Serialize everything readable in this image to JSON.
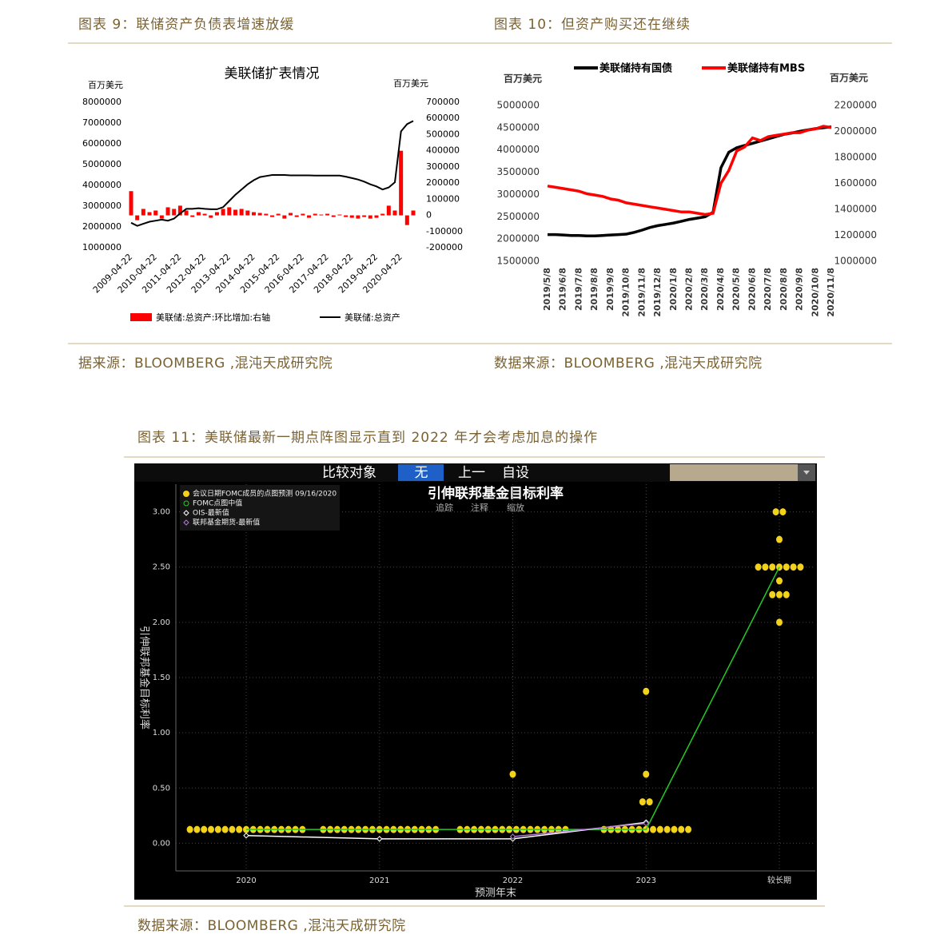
{
  "captions": [
    "图表 9：联储资产负债表增速放缓",
    "图表 10：但资产购买还在继续",
    "图表 11：美联储最新一期点阵图显示直到 2022 年才会考虑加息的操作"
  ],
  "sources": [
    "据来源：BLOOMBERG ,混沌天成研究院",
    "数据来源：BLOOMBERG ,混沌天成研究院",
    "数据来源：BLOOMBERG ,混沌天成研究院"
  ],
  "chart_data": [
    {
      "type": "combo",
      "title": "美联储扩表情况",
      "y_label": "百万美元",
      "y2_label": "百万美元",
      "categories": [
        "2009-04-22",
        null,
        null,
        null,
        "2010-04-22",
        null,
        null,
        null,
        "2011-04-22",
        null,
        null,
        null,
        "2012-04-22",
        null,
        null,
        null,
        "2013-04-22",
        null,
        null,
        null,
        "2014-04-22",
        null,
        null,
        null,
        "2015-04-22",
        null,
        null,
        null,
        "2016-04-22",
        null,
        null,
        null,
        "2017-04-22",
        null,
        null,
        null,
        "2018-04-22",
        null,
        null,
        null,
        "2019-04-22",
        null,
        null,
        null,
        "2020-04-22",
        null,
        null
      ],
      "ylim": [
        1000000,
        8000000
      ],
      "yticks": [
        1000000,
        2000000,
        3000000,
        4000000,
        5000000,
        6000000,
        7000000,
        8000000
      ],
      "y2lim": [
        -200000,
        700000
      ],
      "y2ticks": [
        -200000,
        -100000,
        0,
        100000,
        200000,
        300000,
        400000,
        500000,
        600000,
        700000
      ],
      "series": [
        {
          "name": "美联储:总资产:环比增加:右轴",
          "type": "bar",
          "axis": "y2",
          "color": "#ff0000",
          "values": [
            150000,
            -30000,
            40000,
            20000,
            30000,
            -20000,
            50000,
            40000,
            60000,
            30000,
            -10000,
            20000,
            10000,
            -15000,
            20000,
            40000,
            50000,
            35000,
            40000,
            30000,
            20000,
            15000,
            10000,
            -10000,
            10000,
            -20000,
            15000,
            -10000,
            10000,
            -15000,
            10000,
            5000,
            10000,
            -10000,
            5000,
            -10000,
            -15000,
            -20000,
            -10000,
            -20000,
            -15000,
            10000,
            60000,
            30000,
            400000,
            -60000,
            30000
          ]
        },
        {
          "name": "美联储:总资产",
          "type": "line",
          "color": "#000000",
          "values": [
            2200000,
            2050000,
            2150000,
            2250000,
            2300000,
            2350000,
            2300000,
            2400000,
            2650000,
            2870000,
            2870000,
            2900000,
            2870000,
            2850000,
            2850000,
            2950000,
            3250000,
            3550000,
            3800000,
            4050000,
            4250000,
            4400000,
            4450000,
            4500000,
            4500000,
            4500000,
            4480000,
            4480000,
            4480000,
            4480000,
            4470000,
            4470000,
            4470000,
            4470000,
            4470000,
            4420000,
            4350000,
            4280000,
            4180000,
            4050000,
            3950000,
            3800000,
            3900000,
            4150000,
            6600000,
            6950000,
            7100000
          ]
        }
      ]
    },
    {
      "type": "line",
      "y_label": "百万美元",
      "y2_label": "百万美元",
      "categories": [
        "2019/5/8",
        null,
        "2019/6/8",
        null,
        "2019/7/8",
        null,
        "2019/8/8",
        null,
        "2019/9/8",
        null,
        "2019/10/8",
        null,
        "2019/11/8",
        null,
        "2019/12/8",
        null,
        "2020/1/8",
        null,
        "2020/2/8",
        null,
        "2020/3/8",
        null,
        "2020/4/8",
        null,
        "2020/5/8",
        null,
        "2020/6/8",
        null,
        "2020/7/8",
        null,
        "2020/8/8",
        null,
        "2020/9/8",
        null,
        "2020/10/8",
        null,
        "2020/11/8"
      ],
      "ylim": [
        1500000,
        5000000
      ],
      "yticks": [
        1500000,
        2000000,
        2500000,
        3000000,
        3500000,
        4000000,
        4500000,
        5000000
      ],
      "y2lim": [
        1000000,
        2200000
      ],
      "y2ticks": [
        1000000,
        1200000,
        1400000,
        1600000,
        1800000,
        2000000,
        2200000
      ],
      "series": [
        {
          "name": "美联储持有国债",
          "color": "#000000",
          "values": [
            2100000,
            2100000,
            2090000,
            2080000,
            2080000,
            2070000,
            2070000,
            2080000,
            2090000,
            2100000,
            2110000,
            2150000,
            2200000,
            2260000,
            2300000,
            2330000,
            2360000,
            2400000,
            2440000,
            2470000,
            2500000,
            2600000,
            3600000,
            3950000,
            4050000,
            4100000,
            4150000,
            4200000,
            4250000,
            4300000,
            4350000,
            4380000,
            4420000,
            4450000,
            4480000,
            4500000,
            4520000
          ]
        },
        {
          "name": "美联储持有MBS",
          "axis": "y2",
          "color": "#ff0000",
          "values": [
            1580000,
            1570000,
            1560000,
            1550000,
            1540000,
            1520000,
            1510000,
            1500000,
            1480000,
            1470000,
            1450000,
            1440000,
            1430000,
            1420000,
            1410000,
            1400000,
            1390000,
            1380000,
            1380000,
            1370000,
            1360000,
            1370000,
            1600000,
            1700000,
            1850000,
            1880000,
            1950000,
            1930000,
            1960000,
            1970000,
            1980000,
            1990000,
            1990000,
            2010000,
            2020000,
            2040000,
            2030000
          ]
        }
      ]
    },
    {
      "type": "dotplot",
      "title": "引伸联邦基金目标利率",
      "toolbar": [
        "比较对象",
        "无",
        "上一",
        "自设"
      ],
      "tools": [
        "追踪",
        "注释",
        "缩放"
      ],
      "y_label": "引伸联邦基金目标利率",
      "x_label": "预测年末",
      "categories": [
        "2020",
        "2021",
        "2022",
        "2023",
        "较长期"
      ],
      "ylim": [
        -0.25,
        3.25
      ],
      "yticks": [
        {
          "value": 0,
          "label": "0.00"
        },
        {
          "value": 0.5,
          "label": "0.50"
        },
        {
          "value": 1,
          "label": "1.00"
        },
        {
          "value": 1.5,
          "label": "1.50"
        },
        {
          "value": 2,
          "label": "2.00"
        },
        {
          "value": 2.5,
          "label": "2.50"
        },
        {
          "value": 3,
          "label": "3.00"
        }
      ],
      "series": [
        {
          "name": "会议日期FOMC成员的点图预测 09/16/2020",
          "type": "dots",
          "color": "#f2d21b",
          "values": [
            [
              0.125,
              0.125,
              0.125,
              0.125,
              0.125,
              0.125,
              0.125,
              0.125,
              0.125,
              0.125,
              0.125,
              0.125,
              0.125,
              0.125,
              0.125,
              0.125,
              0.125
            ],
            [
              0.125,
              0.125,
              0.125,
              0.125,
              0.125,
              0.125,
              0.125,
              0.125,
              0.125,
              0.125,
              0.125,
              0.125,
              0.125,
              0.125,
              0.125,
              0.125,
              0.125
            ],
            [
              0.125,
              0.125,
              0.125,
              0.125,
              0.125,
              0.125,
              0.125,
              0.125,
              0.125,
              0.125,
              0.125,
              0.125,
              0.125,
              0.125,
              0.125,
              0.125,
              0.625
            ],
            [
              0.125,
              0.125,
              0.125,
              0.125,
              0.125,
              0.125,
              0.125,
              0.125,
              0.125,
              0.125,
              0.125,
              0.125,
              0.125,
              0.375,
              0.375,
              0.625,
              1.375
            ],
            [
              3,
              3,
              2.75,
              2.5,
              2.5,
              2.5,
              2.5,
              2.5,
              2.5,
              2.5,
              2.375,
              2.25,
              2.25,
              2.25,
              2
            ]
          ]
        },
        {
          "name": "FOMC点图中值",
          "type": "line",
          "color": "#22cc22",
          "values": [
            0.125,
            0.125,
            0.125,
            0.125,
            2.5
          ]
        },
        {
          "name": "OIS-最新值",
          "type": "line",
          "color": "#ffffff",
          "values": [
            0.07,
            0.04,
            0.04,
            0.19,
            null
          ]
        },
        {
          "name": "联邦基金期货-最新值",
          "type": "line",
          "color": "#b07cd8",
          "values": [
            null,
            null,
            0.06,
            0.18,
            null
          ]
        }
      ]
    }
  ]
}
